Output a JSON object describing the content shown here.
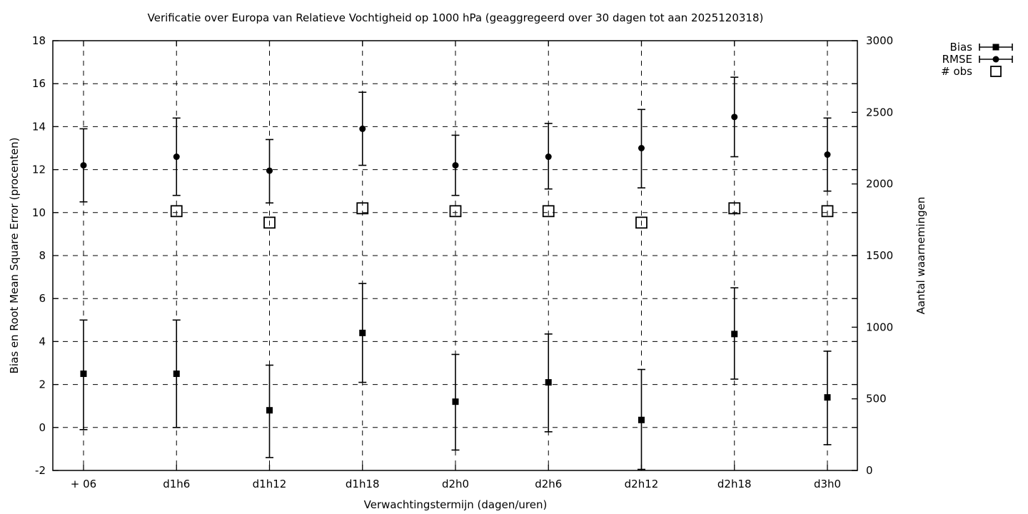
{
  "chart_data": {
    "type": "scatter",
    "title": "Verificatie over Europa van Relatieve Vochtigheid op 1000 hPa (geaggregeerd over 30 dagen tot aan 2025120318)",
    "xlabel": "Verwachtingstermijn (dagen/uren)",
    "ylabel_left": "Bias en Root Mean Square Error (procenten)",
    "ylabel_right": "Aantal waarnemingen",
    "grid": "dashed",
    "legend_position": "outside-top-right",
    "legend": [
      "Bias",
      "RMSE",
      "# obs"
    ],
    "categories": [
      "+ 06",
      "d1h6",
      "d1h12",
      "d1h18",
      "d2h0",
      "d2h6",
      "d2h12",
      "d2h18",
      "d3h0"
    ],
    "y_left": {
      "min": -2,
      "max": 18,
      "ticks": [
        -2,
        0,
        2,
        4,
        6,
        8,
        10,
        12,
        14,
        16,
        18
      ]
    },
    "y_right": {
      "min": 0,
      "max": 3000,
      "ticks": [
        0,
        500,
        1000,
        1500,
        2000,
        2500,
        3000
      ]
    },
    "series": [
      {
        "name": "Bias",
        "marker": "filled-square",
        "axis": "left",
        "values": [
          2.5,
          2.5,
          0.8,
          4.4,
          1.2,
          2.1,
          0.35,
          4.35,
          1.4
        ],
        "err_low": [
          -0.1,
          0.0,
          -1.4,
          2.1,
          -1.05,
          -0.2,
          -1.95,
          2.25,
          -0.8
        ],
        "err_high": [
          5.0,
          5.0,
          2.9,
          6.7,
          3.4,
          4.35,
          2.7,
          6.5,
          3.55
        ]
      },
      {
        "name": "RMSE",
        "marker": "filled-circle",
        "axis": "left",
        "values": [
          12.2,
          12.6,
          11.95,
          13.9,
          12.2,
          12.6,
          13.0,
          14.45,
          12.7
        ],
        "err_low": [
          10.5,
          10.8,
          10.45,
          12.2,
          10.8,
          11.1,
          11.15,
          12.6,
          11.0
        ],
        "err_high": [
          13.9,
          14.4,
          13.4,
          15.6,
          13.6,
          14.15,
          14.8,
          16.3,
          14.4
        ]
      },
      {
        "name": "# obs",
        "marker": "open-square",
        "axis": "right",
        "values": [
          null,
          1810,
          1730,
          1830,
          1810,
          1810,
          1730,
          1830,
          1810
        ]
      }
    ],
    "colors": {
      "foreground": "#000000",
      "background": "#ffffff"
    }
  }
}
